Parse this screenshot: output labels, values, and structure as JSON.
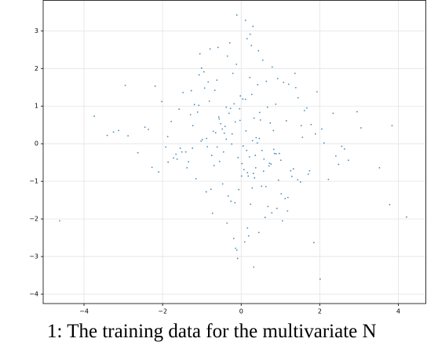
{
  "chart_data": {
    "type": "scatter",
    "color": "#1f77b4",
    "grid": true,
    "xlim": [
      -5.04,
      4.7
    ],
    "ylim": [
      -4.25,
      3.81
    ],
    "xticks": [
      {
        "value": -4,
        "label": "−4"
      },
      {
        "value": -2,
        "label": "−2"
      },
      0,
      2,
      4
    ],
    "yticks": [
      {
        "value": -4,
        "label": "−4"
      },
      {
        "value": -3,
        "label": "−3"
      },
      {
        "value": -2,
        "label": "−2"
      },
      {
        "value": -1,
        "label": "−1"
      },
      0,
      1,
      2,
      3
    ],
    "x": [
      0.12,
      -0.45,
      0.88,
      -1.23,
      0.34,
      1.56,
      -0.67,
      0.05,
      -2.1,
      1.02,
      -0.31,
      0.76,
      -1.55,
      0.22,
      2.05,
      -0.89,
      0.41,
      -0.12,
      1.33,
      -1.78,
      0.58,
      -0.04,
      1.89,
      -0.73,
      0.27,
      -2.45,
      0.95,
      -0.38,
      0.16,
      1.21,
      -1.02,
      0.63,
      -0.21,
      2.41,
      -0.56,
      0.09,
      -1.34,
      1.67,
      0.44,
      -0.81,
      0.31,
      -1.66,
      1.12,
      -0.15,
      0.79,
      -2.88,
      0.53,
      -0.47,
      1.45,
      0.02,
      -0.62,
      2.73,
      -1.11,
      0.37,
      -0.29,
      0.91,
      -1.92,
      0.18,
      1.78,
      -0.43,
      0.67,
      -0.95,
      0.24,
      -3.12,
      1.05,
      -0.08,
      0.49,
      -1.41,
      2.22,
      -0.26,
      0.83,
      -0.57,
      1.39,
      -0.11,
      -1.08,
      0.29,
      3.05,
      -0.69,
      0.11,
      -1.87,
      1.18,
      -0.35,
      0.46,
      -2.27,
      0.72,
      -0.02,
      1.61,
      -0.84,
      0.36,
      -1.24,
      0.19,
      -0.52,
      2.56,
      -0.77,
      0.93,
      -1.58,
      0.07,
      1.29,
      -0.18,
      -3.41,
      0.55,
      -1.15,
      0.85,
      -0.24,
      1.93,
      -0.65,
      0.28,
      -2.02,
      1.15,
      -0.09,
      -0.41,
      0.68,
      -1.72,
      0.15,
      3.52,
      -0.93,
      0.47,
      -0.33,
      1.51,
      -1.29,
      0.04,
      -0.71,
      1.26,
      -2.63,
      0.61,
      0.38,
      -1.01,
      2.11,
      -0.14,
      0.74,
      -0.86,
      0.21,
      -1.48,
      1.08,
      -0.27,
      0.52,
      -3.74,
      0.97,
      -0.55,
      1.71,
      0.33,
      -1.19,
      0.71,
      -0.06,
      2.34,
      -0.79,
      0.14,
      -1.63,
      1.37,
      -0.36,
      0.89,
      -2.19,
      0.26,
      -0.48,
      1.19,
      -0.99,
      0.57,
      3.84,
      -0.16,
      -1.38,
      0.42,
      -0.61,
      1.53,
      -1.86,
      0.01,
      0.78,
      -0.23,
      2.48,
      -1.05,
      0.3,
      -4.62,
      4.21,
      3.78,
      2.01,
      -0.11,
      0.32,
      -2.95,
      1.85,
      -3.25,
      2.95,
      -0.75,
      0.16,
      1.01,
      -0.38,
      0.64,
      -1.27,
      0.45,
      -0.03,
      2.63,
      -2.36,
      0.23,
      -0.88,
      1.44,
      -0.19,
      0.82,
      -1.51,
      0.11,
      -0.59,
      1.74,
      -1.07
    ],
    "values": [
      0.34,
      -0.22,
      1.05,
      0.48,
      -0.91,
      0.17,
      1.42,
      -0.06,
      -0.75,
      -1.33,
      0.81,
      -0.54,
      -0.12,
      1.76,
      0.39,
      -1.28,
      0.02,
      2.11,
      -0.67,
      0.59,
      -0.41,
      0.93,
      0.26,
      -1.85,
      1.31,
      0.44,
      -0.97,
      0.12,
      -2.24,
      1.58,
      0.07,
      -1.14,
      1.87,
      -0.33,
      0.66,
      -2.61,
      -0.48,
      0.95,
      2.47,
      1.13,
      -0.79,
      -0.28,
      -1.46,
      0.58,
      2.04,
      0.21,
      -0.18,
      -1.07,
      1.22,
      -0.53,
      1.69,
      -0.44,
      0.84,
      -0.64,
      2.68,
      -1.72,
      -0.09,
      -0.86,
      0.51,
      0.28,
      0.97,
      1.91,
      -1.61,
      0.35,
      -2.05,
      -0.37,
      0.63,
      -0.22,
      -0.95,
      -1.53,
      -0.15,
      0.71,
      1.49,
      -2.83,
      1.02,
      0.08,
      0.42,
      -0.58,
      3.28,
      0.19,
      -1.79,
      2.33,
      0.14,
      -0.63,
      -0.52,
      1.27,
      0.88,
      1.64,
      -0.31,
      -0.12,
      -2.45,
      0.53,
      -0.07,
      -1.21,
      1.73,
      0.92,
      -0.69,
      -0.87,
      1.06,
      0.22,
      2.22,
      -0.93,
      -0.26,
      -0.01,
      1.38,
      0.29,
      -1.18,
      1.12,
      0.61,
      -3.05,
      0.46,
      -1.67,
      -0.38,
      2.79,
      -0.64,
      1.48,
      0.83,
      -1.39,
      -1.02,
      0.77,
      1.19,
      0.33,
      -0.72,
      -0.24,
      -1.96,
      0.16,
      2.01,
      0.02,
      -2.78,
      0.55,
      -0.08,
      -0.35,
      1.36,
      1.63,
      0.94,
      -1.13,
      0.73,
      -0.26,
      -0.47,
      -0.81,
      0.68,
      1.04,
      -0.59,
      -1.22,
      0.81,
      2.52,
      -0.18,
      -0.41,
      1.87,
      -2.11,
      -0.27,
      1.53,
      2.61,
      0.39,
      -1.43,
      0.11,
      -0.73,
      0.48,
      -1.57,
      -0.64,
      1.57,
      -0.09,
      0.48,
      -0.49,
      -0.86,
      -1.84,
      0.26,
      -0.55,
      2.39,
      3.12,
      -2.05,
      -1.95,
      -1.62,
      -3.6,
      3.42,
      -3.28,
      1.55,
      -2.63,
      0.31,
      0.85,
      -0.31,
      -0.77,
      -0.44,
      0.97,
      1.66,
      1.41,
      -2.36,
      0.62,
      -0.14,
      0.38,
      2.91,
      0.14,
      -0.96,
      -2.52,
      0.35,
      -0.22,
      1.18,
      2.56,
      -0.72,
      1.83
    ],
    "caption": "1: The training data for the multivariate N"
  }
}
